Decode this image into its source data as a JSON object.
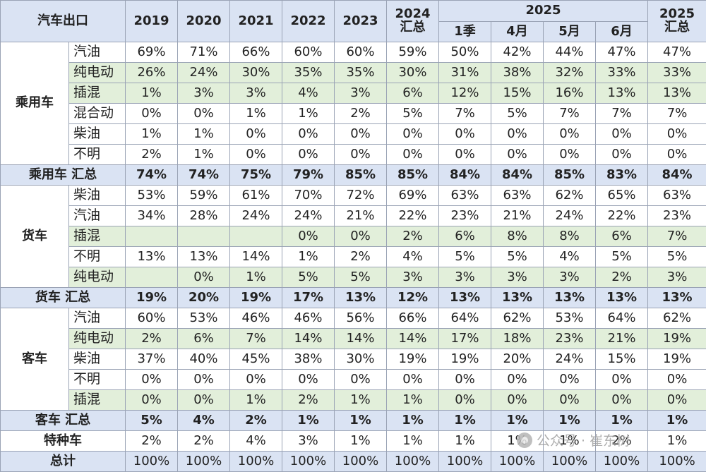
{
  "chart_data": {
    "type": "table",
    "corner_label": "汽车出口",
    "columns": [
      {
        "label": "2019"
      },
      {
        "label": "2020"
      },
      {
        "label": "2021"
      },
      {
        "label": "2022"
      },
      {
        "label": "2023"
      },
      {
        "label": "2024\n汇总"
      },
      {
        "label": "1季",
        "group": "2025"
      },
      {
        "label": "4月",
        "group": "2025"
      },
      {
        "label": "5月",
        "group": "2025"
      },
      {
        "label": "6月",
        "group": "2025"
      },
      {
        "label": "2025\n汇总"
      }
    ],
    "sections": [
      {
        "name": "乘用车",
        "rows": [
          {
            "label": "汽油",
            "shade": false,
            "values": [
              "69%",
              "71%",
              "66%",
              "60%",
              "60%",
              "59%",
              "50%",
              "42%",
              "44%",
              "47%",
              "47%"
            ]
          },
          {
            "label": "纯电动",
            "shade": true,
            "values": [
              "26%",
              "24%",
              "30%",
              "35%",
              "35%",
              "30%",
              "31%",
              "38%",
              "32%",
              "33%",
              "33%"
            ]
          },
          {
            "label": "插混",
            "shade": true,
            "values": [
              "1%",
              "3%",
              "3%",
              "4%",
              "3%",
              "6%",
              "12%",
              "15%",
              "16%",
              "13%",
              "13%"
            ]
          },
          {
            "label": "混合动",
            "shade": false,
            "values": [
              "0%",
              "0%",
              "1%",
              "1%",
              "2%",
              "5%",
              "7%",
              "5%",
              "7%",
              "7%",
              "7%"
            ]
          },
          {
            "label": "柴油",
            "shade": false,
            "values": [
              "1%",
              "1%",
              "0%",
              "0%",
              "0%",
              "0%",
              "0%",
              "0%",
              "0%",
              "0%",
              "0%"
            ]
          },
          {
            "label": "不明",
            "shade": false,
            "values": [
              "2%",
              "1%",
              "0%",
              "0%",
              "0%",
              "0%",
              "0%",
              "0%",
              "0%",
              "0%",
              "0%"
            ]
          }
        ],
        "total": {
          "label": "乘用车 汇总",
          "values": [
            "74%",
            "74%",
            "75%",
            "79%",
            "85%",
            "85%",
            "84%",
            "84%",
            "85%",
            "83%",
            "84%"
          ]
        }
      },
      {
        "name": "货车",
        "rows": [
          {
            "label": "柴油",
            "shade": false,
            "values": [
              "53%",
              "59%",
              "61%",
              "70%",
              "72%",
              "69%",
              "63%",
              "63%",
              "62%",
              "65%",
              "63%"
            ]
          },
          {
            "label": "汽油",
            "shade": false,
            "values": [
              "34%",
              "28%",
              "24%",
              "24%",
              "21%",
              "22%",
              "23%",
              "21%",
              "24%",
              "22%",
              "23%"
            ]
          },
          {
            "label": "插混",
            "shade": true,
            "values": [
              "",
              "",
              "",
              "0%",
              "0%",
              "2%",
              "6%",
              "8%",
              "8%",
              "6%",
              "7%"
            ]
          },
          {
            "label": "不明",
            "shade": false,
            "values": [
              "13%",
              "13%",
              "14%",
              "1%",
              "2%",
              "4%",
              "5%",
              "5%",
              "4%",
              "5%",
              "5%"
            ]
          },
          {
            "label": "纯电动",
            "shade": true,
            "values": [
              "",
              "0%",
              "1%",
              "5%",
              "5%",
              "3%",
              "3%",
              "3%",
              "3%",
              "2%",
              "3%"
            ]
          }
        ],
        "total": {
          "label": "货车 汇总",
          "values": [
            "19%",
            "20%",
            "19%",
            "17%",
            "13%",
            "12%",
            "13%",
            "13%",
            "13%",
            "13%",
            "13%"
          ]
        }
      },
      {
        "name": "客车",
        "rows": [
          {
            "label": "汽油",
            "shade": false,
            "values": [
              "60%",
              "53%",
              "46%",
              "46%",
              "56%",
              "66%",
              "64%",
              "62%",
              "53%",
              "64%",
              "62%"
            ]
          },
          {
            "label": "纯电动",
            "shade": true,
            "values": [
              "2%",
              "6%",
              "7%",
              "14%",
              "14%",
              "14%",
              "17%",
              "18%",
              "23%",
              "21%",
              "19%"
            ]
          },
          {
            "label": "柴油",
            "shade": false,
            "values": [
              "37%",
              "40%",
              "45%",
              "38%",
              "30%",
              "19%",
              "19%",
              "20%",
              "24%",
              "15%",
              "19%"
            ]
          },
          {
            "label": "不明",
            "shade": false,
            "values": [
              "0%",
              "0%",
              "0%",
              "0%",
              "0%",
              "0%",
              "0%",
              "0%",
              "0%",
              "0%",
              "0%"
            ]
          },
          {
            "label": "插混",
            "shade": true,
            "values": [
              "0%",
              "0%",
              "1%",
              "2%",
              "1%",
              "1%",
              "0%",
              "0%",
              "0%",
              "0%",
              "0%"
            ]
          }
        ],
        "total": {
          "label": "客车 汇总",
          "values": [
            "5%",
            "4%",
            "2%",
            "1%",
            "1%",
            "1%",
            "1%",
            "1%",
            "1%",
            "1%",
            "1%"
          ]
        }
      }
    ],
    "special": {
      "label": "特种车",
      "values": [
        "2%",
        "2%",
        "4%",
        "3%",
        "1%",
        "1%",
        "1%",
        "1%",
        "1%",
        "2%",
        "1%"
      ]
    },
    "grand_total": {
      "label": "总计",
      "values": [
        "100%",
        "100%",
        "100%",
        "100%",
        "100%",
        "100%",
        "100%",
        "100%",
        "100%",
        "100%",
        "100%"
      ]
    },
    "colors": {
      "header": "#dae3f3",
      "shade": "#e2efda",
      "border": "#9aa3b5"
    }
  },
  "watermark": {
    "text": "公众号 · 崔东树",
    "icon": "wechat-icon"
  }
}
